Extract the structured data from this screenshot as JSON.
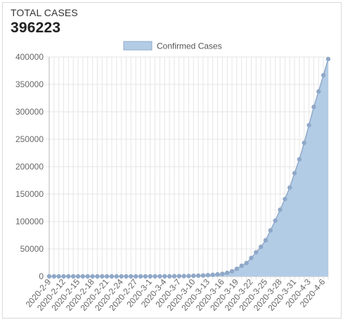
{
  "card": {
    "title": "TOTAL CASES",
    "value": "396223"
  },
  "colors": {
    "fill": "#b3cce6",
    "stroke": "#8fa9c8",
    "point": "#90a8c8",
    "grid": "#e5e5e5",
    "axis": "#b5b5b5"
  },
  "chart_data": {
    "type": "area",
    "title": "",
    "xlabel": "",
    "ylabel": "",
    "legend": {
      "position": "top",
      "label": "Confirmed Cases"
    },
    "grid": true,
    "ylim": [
      0,
      400000
    ],
    "yticks": [
      0,
      50000,
      100000,
      150000,
      200000,
      250000,
      300000,
      350000,
      400000
    ],
    "x": [
      "2020-2-9",
      "2020-2-10",
      "2020-2-11",
      "2020-2-12",
      "2020-2-13",
      "2020-2-14",
      "2020-2-15",
      "2020-2-16",
      "2020-2-17",
      "2020-2-18",
      "2020-2-19",
      "2020-2-20",
      "2020-2-21",
      "2020-2-22",
      "2020-2-23",
      "2020-2-24",
      "2020-2-25",
      "2020-2-26",
      "2020-2-27",
      "2020-2-28",
      "2020-2-29",
      "2020-3-1",
      "2020-3-2",
      "2020-3-3",
      "2020-3-4",
      "2020-3-5",
      "2020-3-6",
      "2020-3-7",
      "2020-3-8",
      "2020-3-9",
      "2020-3-10",
      "2020-3-11",
      "2020-3-12",
      "2020-3-13",
      "2020-3-14",
      "2020-3-15",
      "2020-3-16",
      "2020-3-17",
      "2020-3-18",
      "2020-3-19",
      "2020-3-20",
      "2020-3-21",
      "2020-3-22",
      "2020-3-23",
      "2020-3-24",
      "2020-3-25",
      "2020-3-26",
      "2020-3-27",
      "2020-3-28",
      "2020-3-29",
      "2020-3-30",
      "2020-3-31",
      "2020-4-1",
      "2020-4-2",
      "2020-4-3",
      "2020-4-4",
      "2020-4-5",
      "2020-4-6",
      "2020-4-7"
    ],
    "xticks": [
      "2020-2-9",
      "2020-2-12",
      "2020-2-15",
      "2020-2-18",
      "2020-2-21",
      "2020-2-24",
      "2020-2-27",
      "2020-3-1",
      "2020-3-4",
      "2020-3-7",
      "2020-3-10",
      "2020-3-13",
      "2020-3-16",
      "2020-3-19",
      "2020-3-22",
      "2020-3-25",
      "2020-3-28",
      "2020-3-31",
      "2020-4-3",
      "2020-4-6"
    ],
    "series": [
      {
        "name": "Confirmed Cases",
        "values": [
          11,
          12,
          12,
          13,
          13,
          13,
          15,
          15,
          15,
          15,
          15,
          15,
          35,
          35,
          35,
          53,
          53,
          60,
          60,
          62,
          70,
          75,
          100,
          124,
          158,
          221,
          319,
          435,
          541,
          704,
          994,
          1301,
          1697,
          2247,
          2943,
          3680,
          4663,
          6411,
          9259,
          13789,
          19383,
          24207,
          33546,
          43847,
          53740,
          65778,
          83836,
          101657,
          121465,
          140909,
          161831,
          188172,
          213372,
          243453,
          275586,
          308850,
          337072,
          366667,
          396223
        ]
      }
    ]
  }
}
